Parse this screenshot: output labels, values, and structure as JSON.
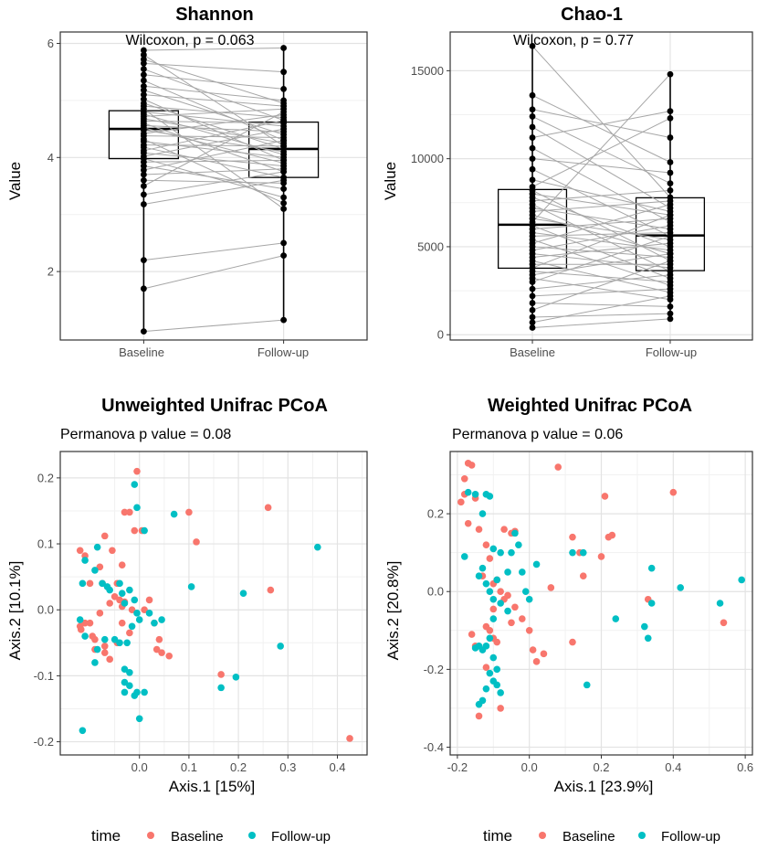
{
  "colors": {
    "baseline": "#F8766D",
    "followup": "#00BFC4",
    "pair_line": "#a6a6a6",
    "grid_major": "#e3e3e3",
    "grid_minor": "#f1f1f1"
  },
  "chart_data": [
    {
      "type": "box",
      "title": "Shannon",
      "annotation": "Wilcoxon, p = 0.063",
      "xlabel": "",
      "ylabel": "Value",
      "categories": [
        "Baseline",
        "Follow-up"
      ],
      "ylim": [
        0.8,
        6.2
      ],
      "yticks": [
        2,
        4,
        6
      ],
      "yminor": [
        3,
        5
      ],
      "boxes": [
        {
          "category": "Baseline",
          "min": 0.95,
          "q1": 3.98,
          "median": 4.5,
          "q3": 4.82,
          "max": 5.88
        },
        {
          "category": "Follow-up",
          "min": 1.15,
          "q1": 3.65,
          "median": 4.15,
          "q3": 4.62,
          "max": 5.92
        }
      ],
      "pairs": [
        [
          0.95,
          1.15
        ],
        [
          1.7,
          2.28
        ],
        [
          2.2,
          2.5
        ],
        [
          3.18,
          3.6
        ],
        [
          3.35,
          3.75
        ],
        [
          3.5,
          4.8
        ],
        [
          3.6,
          3.55
        ],
        [
          3.7,
          3.8
        ],
        [
          3.78,
          4.3
        ],
        [
          3.85,
          3.45
        ],
        [
          3.92,
          3.95
        ],
        [
          3.98,
          3.3
        ],
        [
          4.02,
          4.5
        ],
        [
          4.08,
          3.85
        ],
        [
          4.12,
          4.65
        ],
        [
          4.18,
          3.65
        ],
        [
          4.22,
          4.2
        ],
        [
          4.28,
          4.0
        ],
        [
          4.32,
          3.2
        ],
        [
          4.38,
          4.35
        ],
        [
          4.42,
          4.75
        ],
        [
          4.48,
          4.1
        ],
        [
          4.52,
          3.9
        ],
        [
          4.56,
          4.45
        ],
        [
          4.6,
          3.75
        ],
        [
          4.64,
          4.6
        ],
        [
          4.68,
          4.25
        ],
        [
          4.72,
          4.85
        ],
        [
          4.76,
          4.05
        ],
        [
          4.8,
          4.55
        ],
        [
          4.85,
          3.1
        ],
        [
          4.9,
          4.7
        ],
        [
          4.95,
          4.15
        ],
        [
          5.02,
          3.95
        ],
        [
          5.1,
          4.9
        ],
        [
          5.18,
          4.4
        ],
        [
          5.25,
          5.0
        ],
        [
          5.35,
          4.3
        ],
        [
          5.45,
          5.2
        ],
        [
          5.55,
          4.65
        ],
        [
          5.65,
          5.5
        ],
        [
          5.72,
          4.95
        ],
        [
          5.8,
          4.2
        ],
        [
          5.88,
          5.92
        ]
      ]
    },
    {
      "type": "box",
      "title": "Chao-1",
      "annotation": "Wilcoxon, p = 0.77",
      "xlabel": "",
      "ylabel": "Value",
      "categories": [
        "Baseline",
        "Follow-up"
      ],
      "ylim": [
        -300,
        17200
      ],
      "yticks": [
        0,
        5000,
        10000,
        15000
      ],
      "yminor": [
        2500,
        7500,
        12500
      ],
      "boxes": [
        {
          "category": "Baseline",
          "min": 400,
          "q1": 3780,
          "median": 6250,
          "q3": 8250,
          "max": 16400
        },
        {
          "category": "Follow-up",
          "min": 900,
          "q1": 3640,
          "median": 5640,
          "q3": 7780,
          "max": 14800
        }
      ],
      "pairs": [
        [
          16400,
          7800
        ],
        [
          13600,
          9800
        ],
        [
          12800,
          11200
        ],
        [
          12400,
          8600
        ],
        [
          11800,
          7200
        ],
        [
          11200,
          12700
        ],
        [
          10600,
          6400
        ],
        [
          10000,
          9200
        ],
        [
          9400,
          5600
        ],
        [
          8800,
          7000
        ],
        [
          8400,
          12300
        ],
        [
          8200,
          4200
        ],
        [
          8000,
          6800
        ],
        [
          7800,
          5000
        ],
        [
          7600,
          8200
        ],
        [
          7400,
          3600
        ],
        [
          7200,
          6000
        ],
        [
          7000,
          7600
        ],
        [
          6800,
          4600
        ],
        [
          6600,
          5400
        ],
        [
          6400,
          14800
        ],
        [
          6200,
          3200
        ],
        [
          6000,
          6600
        ],
        [
          5800,
          4800
        ],
        [
          5600,
          5800
        ],
        [
          5400,
          2800
        ],
        [
          5200,
          7400
        ],
        [
          5000,
          4400
        ],
        [
          4800,
          6200
        ],
        [
          4600,
          3800
        ],
        [
          4400,
          5200
        ],
        [
          4200,
          2400
        ],
        [
          4000,
          4000
        ],
        [
          3800,
          6800
        ],
        [
          3600,
          3000
        ],
        [
          3400,
          4600
        ],
        [
          3200,
          2000
        ],
        [
          3000,
          5600
        ],
        [
          2600,
          3400
        ],
        [
          2200,
          2600
        ],
        [
          1800,
          1600
        ],
        [
          1400,
          4200
        ],
        [
          1000,
          1200
        ],
        [
          700,
          2200
        ],
        [
          400,
          900
        ]
      ]
    },
    {
      "type": "scatter",
      "title": "Unweighted Unifrac PCoA",
      "annotation": "Permanova p value = 0.08",
      "xlabel": "Axis.1   [15%]",
      "ylabel": "Axis.2   [10.1%]",
      "xlim": [
        -0.16,
        0.46
      ],
      "ylim": [
        -0.22,
        0.24
      ],
      "xticks": [
        0.0,
        0.1,
        0.2,
        0.3,
        0.4
      ],
      "xminor": [
        -0.05,
        0.05,
        0.15,
        0.25,
        0.35,
        0.45
      ],
      "yticks": [
        -0.2,
        -0.1,
        0.0,
        0.1,
        0.2
      ],
      "yminor": [
        -0.15,
        -0.05,
        0.05,
        0.15
      ],
      "legend_title": "time",
      "series": [
        {
          "name": "Baseline",
          "color": "#F8766D",
          "x": [
            -0.005,
            -0.03,
            -0.02,
            0.005,
            -0.01,
            -0.07,
            -0.12,
            -0.11,
            -0.055,
            -0.035,
            -0.08,
            -0.045,
            -0.1,
            -0.075,
            -0.03,
            -0.035,
            -0.015,
            -0.04,
            -0.05,
            -0.06,
            -0.08,
            -0.1,
            -0.12,
            -0.118,
            -0.11,
            -0.095,
            -0.09,
            -0.07,
            -0.09,
            -0.07,
            -0.06,
            -0.045,
            -0.035,
            -0.02,
            0.01,
            0.02,
            0.03,
            0.04,
            0.035,
            0.045,
            0.1,
            0.115,
            0.26,
            0.265,
            0.165,
            0.425,
            0.06
          ],
          "y": [
            0.21,
            0.148,
            0.148,
            0.12,
            0.12,
            0.112,
            0.09,
            0.082,
            0.09,
            0.068,
            0.065,
            0.04,
            0.04,
            0.04,
            0.012,
            0.005,
            0.0,
            0.015,
            0.02,
            0.01,
            -0.005,
            -0.02,
            -0.025,
            -0.03,
            -0.02,
            -0.04,
            -0.045,
            -0.055,
            -0.06,
            -0.065,
            -0.075,
            -0.05,
            -0.02,
            -0.035,
            0.0,
            0.015,
            -0.02,
            -0.045,
            -0.06,
            -0.065,
            0.148,
            0.103,
            0.155,
            0.03,
            -0.098,
            -0.195,
            -0.07
          ]
        },
        {
          "name": "Follow-up",
          "color": "#00BFC4",
          "x": [
            -0.01,
            -0.005,
            0.01,
            -0.11,
            -0.085,
            -0.09,
            -0.075,
            -0.065,
            -0.06,
            -0.04,
            -0.035,
            -0.03,
            -0.02,
            -0.01,
            -0.005,
            0.0,
            -0.015,
            -0.025,
            -0.04,
            -0.05,
            -0.07,
            -0.085,
            -0.09,
            -0.11,
            -0.12,
            -0.115,
            -0.03,
            -0.02,
            -0.03,
            -0.02,
            -0.03,
            -0.005,
            -0.01,
            0.0,
            0.01,
            0.02,
            0.03,
            0.045,
            0.07,
            0.105,
            0.165,
            0.195,
            0.21,
            0.285,
            0.36,
            -0.115
          ],
          "y": [
            0.19,
            0.155,
            0.12,
            0.075,
            0.095,
            0.06,
            0.04,
            0.035,
            0.03,
            0.04,
            0.025,
            0.01,
            0.03,
            0.015,
            -0.005,
            -0.015,
            -0.025,
            -0.05,
            -0.05,
            -0.045,
            -0.045,
            -0.06,
            -0.08,
            -0.04,
            -0.015,
            0.04,
            -0.09,
            -0.095,
            -0.11,
            -0.115,
            -0.125,
            -0.125,
            -0.13,
            -0.165,
            -0.125,
            -0.005,
            -0.02,
            -0.015,
            0.145,
            0.035,
            -0.118,
            -0.102,
            0.025,
            -0.055,
            0.095,
            -0.183
          ]
        }
      ]
    },
    {
      "type": "scatter",
      "title": "Weighted Unifrac PCoA",
      "annotation": "Permanova p value = 0.06",
      "xlabel": "Axis.1   [23.9%]",
      "ylabel": "Axis.2   [20.8%]",
      "xlim": [
        -0.22,
        0.62
      ],
      "ylim": [
        -0.42,
        0.36
      ],
      "xticks": [
        -0.2,
        0.0,
        0.2,
        0.4,
        0.6
      ],
      "xminor": [
        -0.1,
        0.1,
        0.3,
        0.5
      ],
      "yticks": [
        -0.4,
        -0.2,
        0.0,
        0.2
      ],
      "yminor": [
        -0.3,
        -0.1,
        0.1,
        0.3
      ],
      "legend_title": "time",
      "series": [
        {
          "name": "Baseline",
          "color": "#F8766D",
          "x": [
            -0.17,
            -0.16,
            -0.18,
            -0.15,
            -0.19,
            -0.17,
            -0.14,
            -0.18,
            0.08,
            -0.07,
            -0.05,
            -0.04,
            -0.12,
            -0.11,
            -0.13,
            -0.1,
            -0.09,
            -0.08,
            -0.06,
            -0.04,
            -0.07,
            -0.1,
            -0.12,
            -0.11,
            -0.1,
            -0.09,
            -0.05,
            -0.02,
            0.01,
            0.02,
            0.04,
            0.0,
            0.06,
            0.12,
            0.14,
            0.15,
            0.21,
            0.2,
            0.22,
            0.23,
            0.12,
            0.33,
            0.4,
            0.54,
            -0.16,
            -0.15,
            -0.08,
            -0.14,
            -0.12
          ],
          "y": [
            0.33,
            0.325,
            0.25,
            0.24,
            0.23,
            0.175,
            0.16,
            0.29,
            0.32,
            0.16,
            0.15,
            0.155,
            0.12,
            0.085,
            0.04,
            0.02,
            0.03,
            0.0,
            -0.01,
            -0.04,
            -0.02,
            -0.045,
            -0.09,
            -0.1,
            -0.12,
            -0.13,
            -0.08,
            -0.07,
            -0.15,
            -0.18,
            -0.16,
            -0.1,
            0.01,
            0.14,
            0.1,
            0.04,
            0.245,
            0.09,
            0.14,
            0.145,
            -0.13,
            -0.02,
            0.255,
            -0.08,
            -0.11,
            -0.14,
            -0.3,
            -0.32,
            -0.195
          ]
        },
        {
          "name": "Follow-up",
          "color": "#00BFC4",
          "x": [
            -0.17,
            -0.12,
            -0.11,
            -0.15,
            -0.13,
            -0.18,
            -0.14,
            -0.1,
            -0.08,
            -0.09,
            -0.13,
            -0.12,
            -0.11,
            -0.1,
            -0.08,
            -0.06,
            -0.05,
            -0.04,
            -0.03,
            -0.02,
            -0.01,
            0.0,
            0.02,
            -0.1,
            -0.11,
            -0.12,
            -0.13,
            -0.1,
            -0.09,
            -0.11,
            -0.1,
            -0.09,
            -0.08,
            -0.12,
            -0.13,
            -0.14,
            -0.15,
            0.12,
            0.15,
            0.24,
            0.32,
            0.33,
            0.34,
            0.34,
            0.42,
            0.53,
            0.59,
            0.16,
            -0.14,
            -0.06
          ],
          "y": [
            0.255,
            0.25,
            0.245,
            0.25,
            0.2,
            0.09,
            0.04,
            0.11,
            0.1,
            0.03,
            0.06,
            0.02,
            0.0,
            -0.02,
            -0.03,
            0.05,
            0.1,
            0.15,
            0.12,
            0.05,
            0.0,
            -0.02,
            0.07,
            -0.07,
            -0.12,
            -0.14,
            -0.15,
            -0.17,
            -0.2,
            -0.21,
            -0.23,
            -0.24,
            -0.26,
            -0.25,
            -0.28,
            -0.29,
            -0.145,
            0.1,
            0.1,
            -0.07,
            -0.09,
            -0.12,
            -0.03,
            0.06,
            0.01,
            -0.03,
            0.03,
            -0.24,
            -0.14,
            -0.05
          ]
        }
      ]
    }
  ]
}
